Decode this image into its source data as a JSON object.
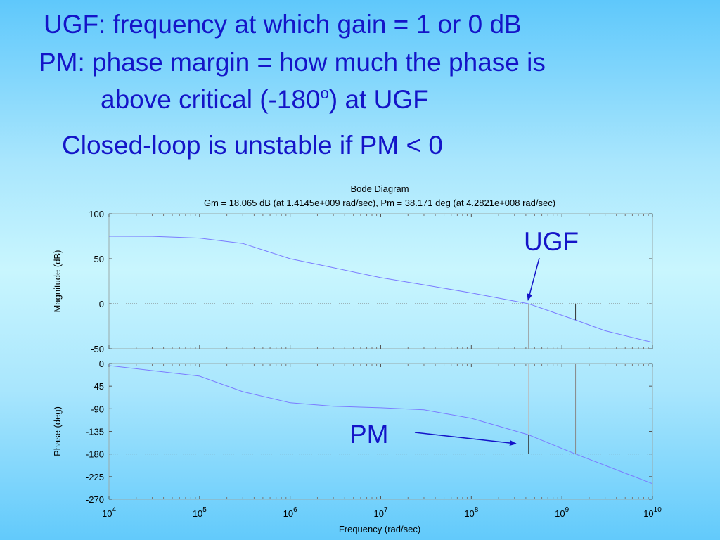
{
  "slide": {
    "lines": [
      "UGF: frequency at which gain = 1 or 0 dB",
      "PM: phase margin = how much the phase is",
      {
        "text": "above critical (-180",
        "sup": "o",
        "tail": ") at UGF"
      },
      "Closed-loop is unstable if PM < 0"
    ]
  },
  "chart_data": [
    {
      "type": "line",
      "title": "Bode Diagram",
      "subtitle": "Gm = 18.065 dB (at 1.4145e+009 rad/sec),  Pm = 38.171 deg (at 4.2821e+008 rad/sec)",
      "ylabel": "Magnitude (dB)",
      "xscale": "log",
      "xlim": [
        10000,
        10000000000
      ],
      "ylim": [
        -50,
        100
      ],
      "yticks": [
        -50,
        0,
        50,
        100
      ],
      "reference_line": 0,
      "series": [
        {
          "color": "#7b7bff",
          "x": [
            10000,
            30000,
            100000,
            300000,
            1000000,
            3000000,
            10000000,
            30000000,
            100000000,
            428210000,
            1414500000,
            3000000000,
            10000000000
          ],
          "values": [
            75,
            74.9,
            73,
            67,
            50,
            40,
            29,
            21,
            12,
            0,
            -18.065,
            -30,
            -43
          ]
        }
      ],
      "annotation": "UGF"
    },
    {
      "type": "line",
      "ylabel": "Phase (deg)",
      "xlabel": "Frequency (rad/sec)",
      "xscale": "log",
      "xlim": [
        10000,
        10000000000
      ],
      "ylim": [
        -270,
        0
      ],
      "yticks": [
        -270,
        -225,
        -180,
        -135,
        -90,
        -45,
        0
      ],
      "xticks": [
        {
          "value": 10000,
          "label": "10",
          "exponent": "4"
        },
        {
          "value": 100000,
          "label": "10",
          "exponent": "5"
        },
        {
          "value": 1000000,
          "label": "10",
          "exponent": "6"
        },
        {
          "value": 10000000,
          "label": "10",
          "exponent": "7"
        },
        {
          "value": 100000000,
          "label": "10",
          "exponent": "8"
        },
        {
          "value": 1000000000,
          "label": "10",
          "exponent": "9"
        },
        {
          "value": 10000000000,
          "label": "10",
          "exponent": "10"
        }
      ],
      "reference_line": -180,
      "series": [
        {
          "color": "#7b7bff",
          "x": [
            10000,
            100000,
            300000,
            1000000,
            3000000,
            10000000,
            30000000,
            100000000,
            428210000,
            1414500000,
            10000000000
          ],
          "values": [
            -4,
            -25,
            -56,
            -78,
            -85,
            -88,
            -92,
            -109,
            -141.829,
            -180,
            -239
          ]
        }
      ],
      "annotation": "PM"
    }
  ]
}
